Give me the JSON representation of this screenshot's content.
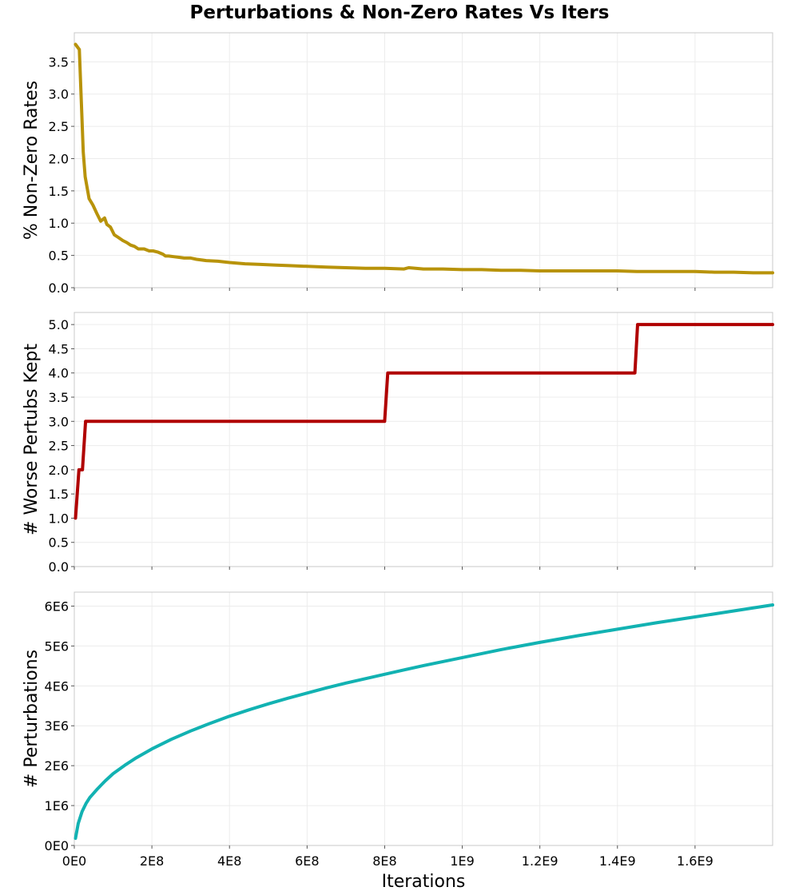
{
  "title": "Perturbations & Non-Zero Rates Vs Iters",
  "chart_data": [
    {
      "type": "line",
      "title": "",
      "xlabel": "",
      "ylabel": "% Non-Zero Rates",
      "xlim": [
        0,
        1800000000
      ],
      "ylim": [
        0,
        3.95
      ],
      "x_ticks": [
        0,
        200000000,
        400000000,
        600000000,
        800000000,
        1000000000,
        1200000000,
        1400000000,
        1600000000
      ],
      "y_ticks": [
        0.0,
        0.5,
        1.0,
        1.5,
        2.0,
        2.5,
        3.0,
        3.5
      ],
      "y_tick_labels": [
        "0.0",
        "0.5",
        "1.0",
        "1.5",
        "2.0",
        "2.5",
        "3.0",
        "3.5"
      ],
      "grid": true,
      "series": [
        {
          "color": "#b8930a",
          "x": [
            3000000,
            13000000,
            23000000,
            28000000,
            38000000,
            48000000,
            58000000,
            68000000,
            78000000,
            84000000,
            93000000,
            103000000,
            113000000,
            125000000,
            135000000,
            145000000,
            155000000,
            165000000,
            180000000,
            193000000,
            203000000,
            216000000,
            228000000,
            235000000,
            243000000,
            256000000,
            270000000,
            283000000,
            300000000,
            315000000,
            340000000,
            370000000,
            400000000,
            440000000,
            480000000,
            520000000,
            560000000,
            600000000,
            650000000,
            700000000,
            750000000,
            800000000,
            850000000,
            862000000,
            900000000,
            950000000,
            1000000000,
            1050000000,
            1100000000,
            1150000000,
            1200000000,
            1250000000,
            1300000000,
            1350000000,
            1400000000,
            1450000000,
            1500000000,
            1550000000,
            1600000000,
            1650000000,
            1700000000,
            1750000000,
            1800000000
          ],
          "y": [
            3.77,
            3.69,
            2.1,
            1.72,
            1.38,
            1.28,
            1.15,
            1.03,
            1.08,
            0.98,
            0.94,
            0.82,
            0.78,
            0.73,
            0.7,
            0.66,
            0.64,
            0.6,
            0.6,
            0.57,
            0.57,
            0.55,
            0.52,
            0.49,
            0.49,
            0.48,
            0.47,
            0.46,
            0.46,
            0.44,
            0.42,
            0.41,
            0.39,
            0.37,
            0.36,
            0.35,
            0.34,
            0.33,
            0.32,
            0.31,
            0.3,
            0.3,
            0.29,
            0.31,
            0.29,
            0.29,
            0.28,
            0.28,
            0.27,
            0.27,
            0.26,
            0.26,
            0.26,
            0.26,
            0.26,
            0.25,
            0.25,
            0.25,
            0.25,
            0.24,
            0.24,
            0.23,
            0.23
          ]
        }
      ]
    },
    {
      "type": "line",
      "title": "",
      "xlabel": "",
      "ylabel": "# Worse Pertubs Kept",
      "xlim": [
        0,
        1800000000
      ],
      "ylim": [
        0,
        5.25
      ],
      "x_ticks": [
        0,
        200000000,
        400000000,
        600000000,
        800000000,
        1000000000,
        1200000000,
        1400000000,
        1600000000
      ],
      "y_ticks": [
        0.0,
        0.5,
        1.0,
        1.5,
        2.0,
        2.5,
        3.0,
        3.5,
        4.0,
        4.5,
        5.0
      ],
      "y_tick_labels": [
        "0.0",
        "0.5",
        "1.0",
        "1.5",
        "2.0",
        "2.5",
        "3.0",
        "3.5",
        "4.0",
        "4.5",
        "5.0"
      ],
      "grid": true,
      "series": [
        {
          "color": "#b00000",
          "x": [
            3000000,
            12000000,
            13000000,
            20000000,
            21000000,
            29000000,
            800000000,
            808000000,
            1445000000,
            1452000000,
            1800000000
          ],
          "y": [
            1.0,
            2.0,
            2.0,
            2.0,
            2.0,
            3.0,
            3.0,
            4.0,
            4.0,
            5.0,
            5.0
          ]
        }
      ]
    },
    {
      "type": "line",
      "title": "",
      "xlabel": "Iterations",
      "ylabel": "# Perturbations",
      "xlim": [
        0,
        1800000000
      ],
      "ylim": [
        0,
        6350000
      ],
      "x_ticks": [
        0,
        200000000,
        400000000,
        600000000,
        800000000,
        1000000000,
        1200000000,
        1400000000,
        1600000000
      ],
      "x_tick_labels": [
        "0E0",
        "2E8",
        "4E8",
        "6E8",
        "8E8",
        "1E9",
        "1.2E9",
        "1.4E9",
        "1.6E9"
      ],
      "y_ticks": [
        0,
        1000000,
        2000000,
        3000000,
        4000000,
        5000000,
        6000000
      ],
      "y_tick_labels": [
        "0E0",
        "1E6",
        "2E6",
        "3E6",
        "4E6",
        "5E6",
        "6E6"
      ],
      "grid": true,
      "series": [
        {
          "color": "#12b2b2",
          "x": [
            3000000,
            10000000,
            20000000,
            30000000,
            40000000,
            60000000,
            80000000,
            100000000,
            130000000,
            160000000,
            200000000,
            250000000,
            300000000,
            350000000,
            400000000,
            450000000,
            500000000,
            550000000,
            600000000,
            650000000,
            700000000,
            750000000,
            800000000,
            850000000,
            900000000,
            950000000,
            1000000000,
            1100000000,
            1200000000,
            1300000000,
            1400000000,
            1500000000,
            1600000000,
            1700000000,
            1800000000
          ],
          "y": [
            180000,
            550000,
            850000,
            1050000,
            1200000,
            1420000,
            1620000,
            1800000,
            2010000,
            2200000,
            2420000,
            2660000,
            2870000,
            3060000,
            3240000,
            3400000,
            3550000,
            3690000,
            3820000,
            3950000,
            4070000,
            4180000,
            4290000,
            4400000,
            4510000,
            4610000,
            4710000,
            4910000,
            5090000,
            5260000,
            5420000,
            5580000,
            5730000,
            5880000,
            6030000
          ]
        }
      ]
    }
  ]
}
